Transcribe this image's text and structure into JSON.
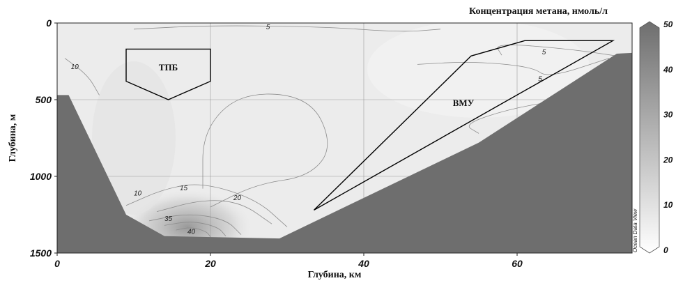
{
  "chart_data": {
    "type": "section-contour",
    "title": "Концентрация метана, нмоль/л",
    "xlabel": "Глубина, км",
    "ylabel": "Глубина, м",
    "xlim": [
      0,
      75
    ],
    "ylim": [
      1500,
      0
    ],
    "x_ticks": [
      0,
      20,
      40,
      60
    ],
    "y_ticks": [
      0,
      500,
      1000,
      1500
    ],
    "grid": true,
    "colorbar": {
      "range": [
        0,
        50
      ],
      "ticks": [
        0,
        10,
        20,
        30,
        40,
        50
      ],
      "low_color": "#ffffff",
      "high_color": "#6e6e6e"
    },
    "watermark": "Ocean Data View",
    "seafloor_color": "#6e6e6e",
    "seafloor_profile": [
      [
        0,
        470
      ],
      [
        1.5,
        470
      ],
      [
        9,
        1250
      ],
      [
        14,
        1390
      ],
      [
        29,
        1405
      ],
      [
        55,
        780
      ],
      [
        73,
        200
      ],
      [
        75,
        195
      ]
    ],
    "contour_labels": [
      {
        "value": "5",
        "x": 27.5,
        "y": 40
      },
      {
        "value": "5",
        "x": 63.5,
        "y": 205
      },
      {
        "value": "5",
        "x": 63,
        "y": 380
      },
      {
        "value": "10",
        "x": 2.3,
        "y": 300
      },
      {
        "value": "10",
        "x": 10.5,
        "y": 1125
      },
      {
        "value": "15",
        "x": 16.5,
        "y": 1090
      },
      {
        "value": "20",
        "x": 23.5,
        "y": 1155
      },
      {
        "value": "35",
        "x": 14.5,
        "y": 1290
      },
      {
        "value": "40",
        "x": 17.5,
        "y": 1375
      }
    ],
    "regions": [
      {
        "label": "ТПБ",
        "outline": [
          [
            9,
            170
          ],
          [
            20,
            170
          ],
          [
            20,
            380
          ],
          [
            14.5,
            500
          ],
          [
            9,
            380
          ],
          [
            9,
            170
          ]
        ],
        "label_pos": [
          14.5,
          310
        ]
      },
      {
        "label": "ВМУ",
        "outline": [
          [
            33.5,
            1220
          ],
          [
            54,
            215
          ],
          [
            61,
            115
          ],
          [
            72.5,
            115
          ],
          [
            33.5,
            1220
          ]
        ],
        "label_pos": [
          53,
          540
        ]
      }
    ]
  }
}
